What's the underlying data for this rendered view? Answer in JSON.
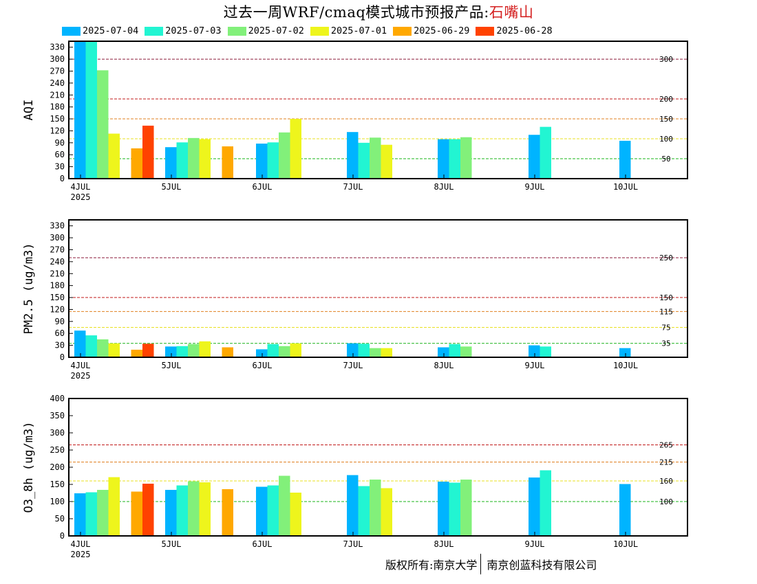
{
  "title": {
    "main": "过去一周WRF/cmaq模式城市预报产品:",
    "station": "石嘴山",
    "station_color": "#d42020"
  },
  "legend": [
    {
      "label": "2025-07-04",
      "color": "#00b4ff"
    },
    {
      "label": "2025-07-03",
      "color": "#22f5d2"
    },
    {
      "label": "2025-07-02",
      "color": "#82f07a"
    },
    {
      "label": "2025-07-01",
      "color": "#eef51c"
    },
    {
      "label": "2025-06-29",
      "color": "#ffa800"
    },
    {
      "label": "2025-06-28",
      "color": "#ff4200"
    }
  ],
  "footer": {
    "left": "版权所有:南京大学",
    "right": "南京创蓝科技有限公司"
  },
  "chart_data": [
    {
      "type": "bar",
      "ylabel": "AQI",
      "ylim": [
        0,
        345
      ],
      "yticks": [
        0,
        30,
        60,
        90,
        120,
        150,
        180,
        210,
        240,
        270,
        300,
        330
      ],
      "xtick_labels": [
        "4JUL",
        "5JUL",
        "6JUL",
        "7JUL",
        "8JUL",
        "9JUL",
        "10JUL"
      ],
      "year_label": "2025",
      "thresholds": [
        {
          "value": 300,
          "label": "300",
          "color": "#8b1a3a"
        },
        {
          "value": 200,
          "label": "200",
          "color": "#c01818"
        },
        {
          "value": 150,
          "label": "150",
          "color": "#e08020"
        },
        {
          "value": 100,
          "label": "100",
          "color": "#e8e020"
        },
        {
          "value": 50,
          "label": "50",
          "color": "#18b418"
        }
      ],
      "series": [
        {
          "name": "2025-07-04",
          "values": [
            345,
            79,
            88,
            117,
            99,
            110,
            95
          ]
        },
        {
          "name": "2025-07-03",
          "values": [
            345,
            91,
            91,
            90,
            99,
            130,
            null
          ]
        },
        {
          "name": "2025-07-02",
          "values": [
            272,
            102,
            116,
            103,
            104,
            null,
            null
          ]
        },
        {
          "name": "2025-07-01",
          "values": [
            113,
            99,
            150,
            85,
            null,
            null,
            null
          ]
        },
        {
          "name": "2025-06-29",
          "values": [
            76,
            81,
            null,
            null,
            null,
            null,
            null
          ]
        },
        {
          "name": "2025-06-28",
          "values": [
            133,
            null,
            null,
            null,
            null,
            null,
            null
          ]
        }
      ]
    },
    {
      "type": "bar",
      "ylabel": "PM2.5 (ug/m3)",
      "ylim": [
        0,
        345
      ],
      "yticks": [
        0,
        30,
        60,
        90,
        120,
        150,
        180,
        210,
        240,
        270,
        300,
        330
      ],
      "xtick_labels": [
        "4JUL",
        "5JUL",
        "6JUL",
        "7JUL",
        "8JUL",
        "9JUL",
        "10JUL"
      ],
      "year_label": "2025",
      "thresholds": [
        {
          "value": 250,
          "label": "250",
          "color": "#8b1a3a"
        },
        {
          "value": 150,
          "label": "150",
          "color": "#c01818"
        },
        {
          "value": 115,
          "label": "115",
          "color": "#e08020"
        },
        {
          "value": 75,
          "label": "75",
          "color": "#e8e020"
        },
        {
          "value": 35,
          "label": "35",
          "color": "#18b418"
        }
      ],
      "series": [
        {
          "name": "2025-07-04",
          "values": [
            67,
            27,
            20,
            35,
            25,
            30,
            23
          ]
        },
        {
          "name": "2025-07-03",
          "values": [
            55,
            28,
            33,
            34,
            33,
            27,
            null
          ]
        },
        {
          "name": "2025-07-02",
          "values": [
            45,
            33,
            28,
            23,
            27,
            null,
            null
          ]
        },
        {
          "name": "2025-07-01",
          "values": [
            35,
            40,
            35,
            23,
            null,
            null,
            null
          ]
        },
        {
          "name": "2025-06-29",
          "values": [
            19,
            25,
            null,
            null,
            null,
            null,
            null
          ]
        },
        {
          "name": "2025-06-28",
          "values": [
            34,
            null,
            null,
            null,
            null,
            null,
            null
          ]
        }
      ]
    },
    {
      "type": "bar",
      "ylabel": "O3_8h (ug/m3)",
      "ylim": [
        0,
        400
      ],
      "yticks": [
        0,
        50,
        100,
        150,
        200,
        250,
        300,
        350,
        400
      ],
      "xtick_labels": [
        "4JUL",
        "5JUL",
        "6JUL",
        "7JUL",
        "8JUL",
        "9JUL",
        "10JUL"
      ],
      "year_label": "2025",
      "thresholds": [
        {
          "value": 265,
          "label": "265",
          "color": "#c01818"
        },
        {
          "value": 215,
          "label": "215",
          "color": "#e08020"
        },
        {
          "value": 160,
          "label": "160",
          "color": "#e8e020"
        },
        {
          "value": 100,
          "label": "100",
          "color": "#18b418"
        }
      ],
      "series": [
        {
          "name": "2025-07-04",
          "values": [
            124,
            134,
            143,
            177,
            158,
            170,
            151
          ]
        },
        {
          "name": "2025-07-03",
          "values": [
            127,
            147,
            147,
            145,
            155,
            191,
            null
          ]
        },
        {
          "name": "2025-07-02",
          "values": [
            134,
            159,
            175,
            164,
            164,
            null,
            null
          ]
        },
        {
          "name": "2025-07-01",
          "values": [
            171,
            156,
            126,
            139,
            null,
            null,
            null
          ]
        },
        {
          "name": "2025-06-29",
          "values": [
            129,
            136,
            null,
            null,
            null,
            null,
            null
          ]
        },
        {
          "name": "2025-06-28",
          "values": [
            152,
            null,
            null,
            null,
            null,
            null,
            null
          ]
        }
      ]
    }
  ]
}
